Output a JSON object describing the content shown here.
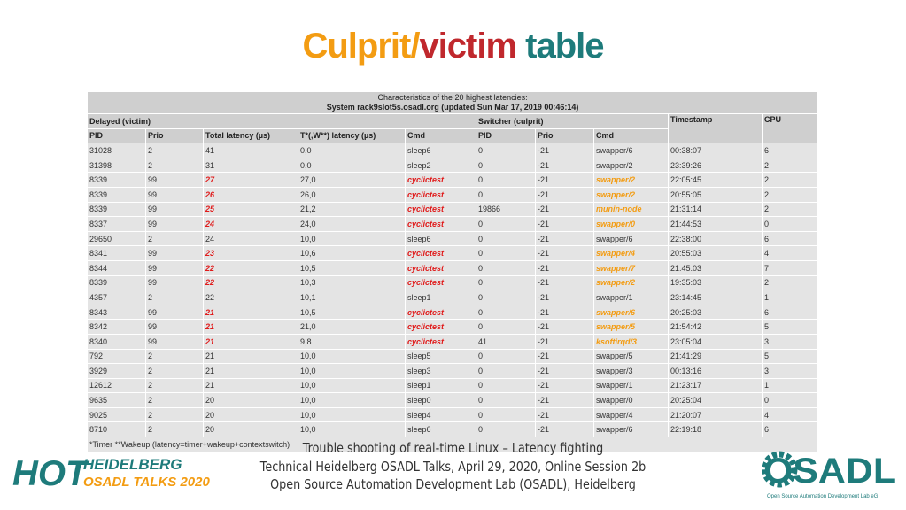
{
  "title": {
    "parts": [
      {
        "text": "Culprit/",
        "color": "#f39c12"
      },
      {
        "text": "victim",
        "color": "#c0282d"
      },
      {
        "text": " table",
        "color": "#1e7b7b"
      }
    ]
  },
  "table": {
    "caption": [
      "Characteristics of the 20 highest latencies:",
      "System rack9slot5s.osadl.org (updated Sun Mar 17, 2019 00:46:14)"
    ],
    "groups": [
      "Delayed (victim)",
      "Switcher (culprit)",
      "Timestamp",
      "CPU"
    ],
    "columns": [
      "PID",
      "Prio",
      "Total latency (µs)",
      "T*(,W**) latency (µs)",
      "Cmd",
      "PID",
      "Prio",
      "Cmd"
    ],
    "rows": [
      {
        "cells": [
          "31028",
          "2",
          "41",
          "0,0",
          "sleep6",
          "0",
          "-21",
          "swapper/6",
          "00:38:07",
          "6"
        ],
        "highlight": false
      },
      {
        "cells": [
          "31398",
          "2",
          "31",
          "0,0",
          "sleep2",
          "0",
          "-21",
          "swapper/2",
          "23:39:26",
          "2"
        ],
        "highlight": false
      },
      {
        "cells": [
          "8339",
          "99",
          "27",
          "27,0",
          "cyclictest",
          "0",
          "-21",
          "swapper/2",
          "22:05:45",
          "2"
        ],
        "highlight": true
      },
      {
        "cells": [
          "8339",
          "99",
          "26",
          "26,0",
          "cyclictest",
          "0",
          "-21",
          "swapper/2",
          "20:55:05",
          "2"
        ],
        "highlight": true
      },
      {
        "cells": [
          "8339",
          "99",
          "25",
          "21,2",
          "cyclictest",
          "19866",
          "-21",
          "munin-node",
          "21:31:14",
          "2"
        ],
        "highlight": true
      },
      {
        "cells": [
          "8337",
          "99",
          "24",
          "24,0",
          "cyclictest",
          "0",
          "-21",
          "swapper/0",
          "21:44:53",
          "0"
        ],
        "highlight": true
      },
      {
        "cells": [
          "29650",
          "2",
          "24",
          "10,0",
          "sleep6",
          "0",
          "-21",
          "swapper/6",
          "22:38:00",
          "6"
        ],
        "highlight": false
      },
      {
        "cells": [
          "8341",
          "99",
          "23",
          "10,6",
          "cyclictest",
          "0",
          "-21",
          "swapper/4",
          "20:55:03",
          "4"
        ],
        "highlight": true
      },
      {
        "cells": [
          "8344",
          "99",
          "22",
          "10,5",
          "cyclictest",
          "0",
          "-21",
          "swapper/7",
          "21:45:03",
          "7"
        ],
        "highlight": true
      },
      {
        "cells": [
          "8339",
          "99",
          "22",
          "10,3",
          "cyclictest",
          "0",
          "-21",
          "swapper/2",
          "19:35:03",
          "2"
        ],
        "highlight": true
      },
      {
        "cells": [
          "4357",
          "2",
          "22",
          "10,1",
          "sleep1",
          "0",
          "-21",
          "swapper/1",
          "23:14:45",
          "1"
        ],
        "highlight": false
      },
      {
        "cells": [
          "8343",
          "99",
          "21",
          "10,5",
          "cyclictest",
          "0",
          "-21",
          "swapper/6",
          "20:25:03",
          "6"
        ],
        "highlight": true
      },
      {
        "cells": [
          "8342",
          "99",
          "21",
          "21,0",
          "cyclictest",
          "0",
          "-21",
          "swapper/5",
          "21:54:42",
          "5"
        ],
        "highlight": true
      },
      {
        "cells": [
          "8340",
          "99",
          "21",
          "9,8",
          "cyclictest",
          "41",
          "-21",
          "ksoftirqd/3",
          "23:05:04",
          "3"
        ],
        "highlight": true
      },
      {
        "cells": [
          "792",
          "2",
          "21",
          "10,0",
          "sleep5",
          "0",
          "-21",
          "swapper/5",
          "21:41:29",
          "5"
        ],
        "highlight": false
      },
      {
        "cells": [
          "3929",
          "2",
          "21",
          "10,0",
          "sleep3",
          "0",
          "-21",
          "swapper/3",
          "00:13:16",
          "3"
        ],
        "highlight": false
      },
      {
        "cells": [
          "12612",
          "2",
          "21",
          "10,0",
          "sleep1",
          "0",
          "-21",
          "swapper/1",
          "21:23:17",
          "1"
        ],
        "highlight": false
      },
      {
        "cells": [
          "9635",
          "2",
          "20",
          "10,0",
          "sleep0",
          "0",
          "-21",
          "swapper/0",
          "20:25:04",
          "0"
        ],
        "highlight": false
      },
      {
        "cells": [
          "9025",
          "2",
          "20",
          "10,0",
          "sleep4",
          "0",
          "-21",
          "swapper/4",
          "21:20:07",
          "4"
        ],
        "highlight": false
      },
      {
        "cells": [
          "8710",
          "2",
          "20",
          "10,0",
          "sleep6",
          "0",
          "-21",
          "swapper/6",
          "22:19:18",
          "6"
        ],
        "highlight": false
      }
    ],
    "footnote": "*Timer  **Wakeup  (latency=timer+wakeup+contextswitch)"
  },
  "footer": [
    "Trouble shooting of real-time Linux – Latency fighting",
    "Technical Heidelberg OSADL Talks, April 29, 2020, Online Session 2b",
    "Open Source Automation Development Lab (OSADL), Heidelberg"
  ],
  "logo_left": {
    "big": "HOT",
    "line1": "HEIDELBERG",
    "line2": "OSADL TALKS 2020"
  },
  "logo_right": {
    "big": "OSADL",
    "small": "Open Source Automation Development Lab eG"
  }
}
